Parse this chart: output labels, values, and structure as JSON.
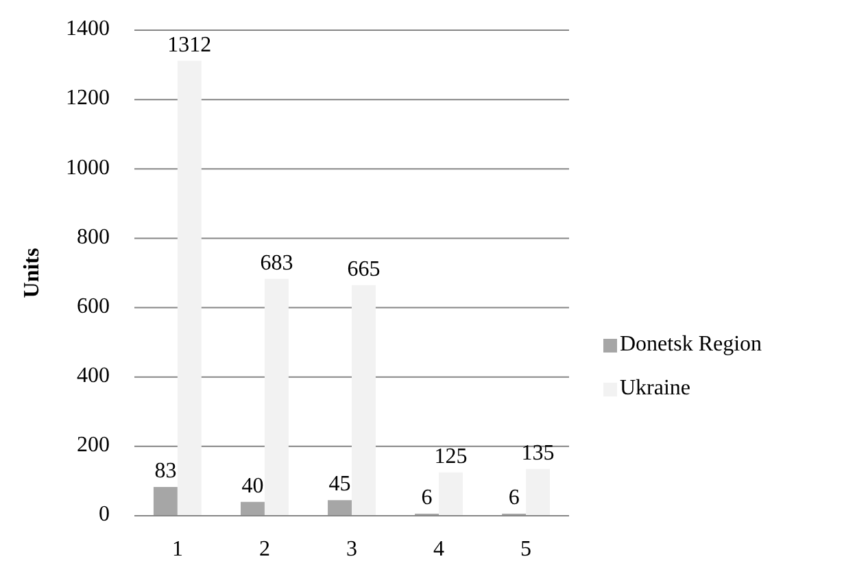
{
  "chart_data": {
    "type": "bar",
    "ylabel": "Units",
    "categories": [
      "1",
      "2",
      "3",
      "4",
      "5"
    ],
    "series": [
      {
        "name": "Donetsk Region",
        "color": "#a6a6a6",
        "values": [
          83,
          40,
          45,
          6,
          6
        ]
      },
      {
        "name": "Ukraine",
        "color": "#f2f2f2",
        "values": [
          1312,
          683,
          665,
          125,
          135
        ]
      }
    ],
    "ylim": [
      0,
      1400
    ],
    "yticks": [
      0,
      200,
      400,
      600,
      800,
      1000,
      1200,
      1400
    ],
    "grid": "y",
    "legend": "right",
    "data_labels": true
  }
}
